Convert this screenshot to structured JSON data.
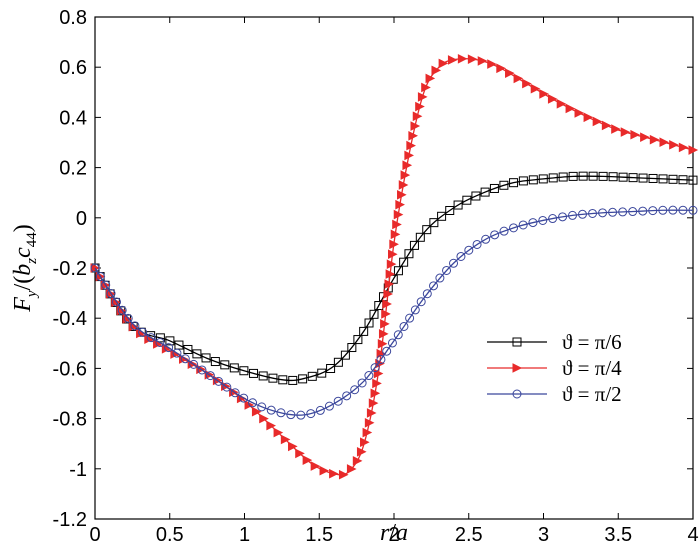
{
  "chart_data": {
    "type": "line",
    "title": "",
    "xlabel_parts": [
      "r",
      "/",
      "a"
    ],
    "ylabel_parts": [
      "F",
      "y",
      "/(",
      "b",
      "z",
      "c",
      "44",
      ")"
    ],
    "xlim": [
      0,
      4
    ],
    "ylim": [
      -1.2,
      0.8
    ],
    "xticks": [
      0,
      0.5,
      1,
      1.5,
      2,
      2.5,
      3,
      3.5,
      4
    ],
    "xtick_labels": [
      "0",
      "0.5",
      "1",
      "1.5",
      "2",
      "2.5",
      "3",
      "3.5",
      "4"
    ],
    "yticks": [
      -1.2,
      -1,
      -0.8,
      -0.6,
      -0.4,
      -0.2,
      0,
      0.2,
      0.4,
      0.6,
      0.8
    ],
    "ytick_labels": [
      "-1.2",
      "-1",
      "-0.8",
      "-0.6",
      "-0.4",
      "-0.2",
      "0",
      "0.2",
      "0.4",
      "0.6",
      "0.8"
    ],
    "grid": false,
    "legend_position": "right-middle",
    "series": [
      {
        "name": "ϑ = π/6",
        "color": "#000000",
        "marker": "square",
        "x": [
          0,
          0.25,
          0.5,
          0.75,
          1.0,
          1.25,
          1.4,
          1.6,
          1.8,
          2.0,
          2.2,
          2.4,
          2.6,
          2.8,
          3.0,
          3.2,
          3.4,
          3.6,
          3.8,
          4.0
        ],
        "y": [
          -0.2,
          -0.43,
          -0.49,
          -0.56,
          -0.61,
          -0.645,
          -0.64,
          -0.59,
          -0.45,
          -0.24,
          -0.06,
          0.04,
          0.1,
          0.14,
          0.155,
          0.165,
          0.165,
          0.16,
          0.155,
          0.15
        ]
      },
      {
        "name": "ϑ = π/4",
        "color": "#e82a2a",
        "marker": "triangle-right",
        "x": [
          0,
          0.25,
          0.5,
          0.75,
          1.0,
          1.25,
          1.45,
          1.6,
          1.7,
          1.8,
          1.9,
          2.0,
          2.1,
          2.2,
          2.3,
          2.4,
          2.55,
          2.7,
          2.9,
          3.1,
          3.3,
          3.5,
          3.75,
          4.0
        ],
        "y": [
          -0.2,
          -0.43,
          -0.53,
          -0.62,
          -0.73,
          -0.87,
          -0.98,
          -1.02,
          -1.01,
          -0.9,
          -0.6,
          -0.1,
          0.25,
          0.5,
          0.6,
          0.63,
          0.63,
          0.6,
          0.53,
          0.46,
          0.4,
          0.35,
          0.31,
          0.27
        ]
      },
      {
        "name": "ϑ = π/2",
        "color": "#3b479c",
        "marker": "circle",
        "x": [
          0,
          0.25,
          0.5,
          0.75,
          1.0,
          1.2,
          1.4,
          1.6,
          1.8,
          2.0,
          2.2,
          2.4,
          2.6,
          2.8,
          3.0,
          3.2,
          3.4,
          3.6,
          3.8,
          4.0
        ],
        "y": [
          -0.2,
          -0.42,
          -0.52,
          -0.62,
          -0.72,
          -0.77,
          -0.785,
          -0.74,
          -0.65,
          -0.49,
          -0.32,
          -0.18,
          -0.09,
          -0.04,
          -0.01,
          0.01,
          0.02,
          0.025,
          0.03,
          0.03
        ]
      }
    ]
  }
}
